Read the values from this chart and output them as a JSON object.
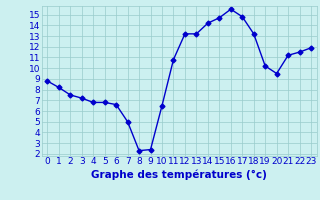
{
  "hours": [
    0,
    1,
    2,
    3,
    4,
    5,
    6,
    7,
    8,
    9,
    10,
    11,
    12,
    13,
    14,
    15,
    16,
    17,
    18,
    19,
    20,
    21,
    22,
    23
  ],
  "temperatures": [
    8.8,
    8.2,
    7.5,
    7.2,
    6.8,
    6.8,
    6.6,
    5.0,
    2.3,
    2.4,
    6.5,
    10.8,
    13.2,
    13.2,
    14.2,
    14.7,
    15.5,
    14.8,
    13.2,
    10.2,
    9.5,
    11.2,
    11.5,
    11.9
  ],
  "line_color": "#0000cc",
  "bg_color": "#ccf0f0",
  "grid_color": "#99cccc",
  "xlabel": "Graphe des températures (°c)",
  "tick_color": "#0000cc",
  "ylim_min": 1.8,
  "ylim_max": 15.8,
  "xlim_min": -0.5,
  "xlim_max": 23.5,
  "yticks": [
    2,
    3,
    4,
    5,
    6,
    7,
    8,
    9,
    10,
    11,
    12,
    13,
    14,
    15
  ],
  "xticks": [
    0,
    1,
    2,
    3,
    4,
    5,
    6,
    7,
    8,
    9,
    10,
    11,
    12,
    13,
    14,
    15,
    16,
    17,
    18,
    19,
    20,
    21,
    22,
    23
  ],
  "marker": "D",
  "marker_size": 2.5,
  "line_width": 1.0,
  "tick_fontsize": 6.5,
  "xlabel_fontsize": 7.5
}
